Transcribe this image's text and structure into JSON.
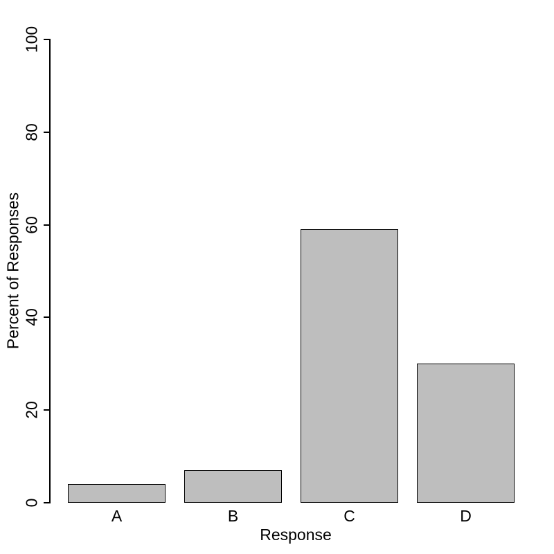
{
  "chart_data": {
    "type": "bar",
    "categories": [
      "A",
      "B",
      "C",
      "D"
    ],
    "values": [
      4,
      7,
      59,
      30
    ],
    "title": "",
    "xlabel": "Response",
    "ylabel": "Percent of Responses",
    "ylim": [
      0,
      100
    ],
    "yticks": [
      0,
      20,
      40,
      60,
      80,
      100
    ],
    "grid": false,
    "legend_position": "none",
    "colors": {
      "bar_fill": "#BEBEBE",
      "bar_border": "#000000",
      "axis": "#000000",
      "text": "#000000",
      "background": "#FFFFFF"
    }
  }
}
